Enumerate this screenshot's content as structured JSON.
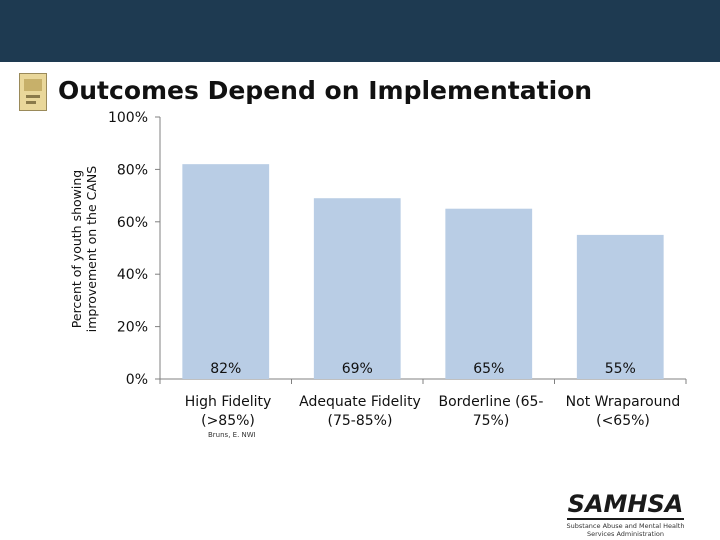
{
  "colors": {
    "band": "#1e3a51",
    "bar": "#b9cde5",
    "axis": "#808080",
    "text": "#111111"
  },
  "slide": {
    "title": "Outcomes Depend on Implementation",
    "title_icon": "document-thumbnail-icon",
    "credit": "Bruns, E. NWI"
  },
  "logo": {
    "word": "SAMHSA",
    "sub1": "Substance Abuse and Mental Health",
    "sub2": "Services Administration"
  },
  "chart_data": {
    "type": "bar",
    "title": "Outcomes Depend on Implementation",
    "ylabel": "Percent of youth showing improvement on the CANS",
    "xlabel": "",
    "categories": [
      "High Fidelity (>85%)",
      "Adequate Fidelity (75-85%)",
      "Borderline (65-75%)",
      "Not Wraparound (<65%)"
    ],
    "category_lines": [
      [
        "High Fidelity",
        "(>85%)"
      ],
      [
        "Adequate Fidelity",
        "(75-85%)"
      ],
      [
        "Borderline (65-",
        "75%)"
      ],
      [
        "Not Wraparound",
        "(<65%)"
      ]
    ],
    "values": [
      82,
      69,
      65,
      55
    ],
    "value_labels": [
      "82%",
      "69%",
      "65%",
      "55%"
    ],
    "ylim": [
      0,
      100
    ],
    "yticks": [
      0,
      20,
      40,
      60,
      80,
      100
    ],
    "ytick_labels": [
      "0%",
      "20%",
      "40%",
      "60%",
      "80%",
      "100%"
    ],
    "grid": false,
    "legend": "none"
  }
}
